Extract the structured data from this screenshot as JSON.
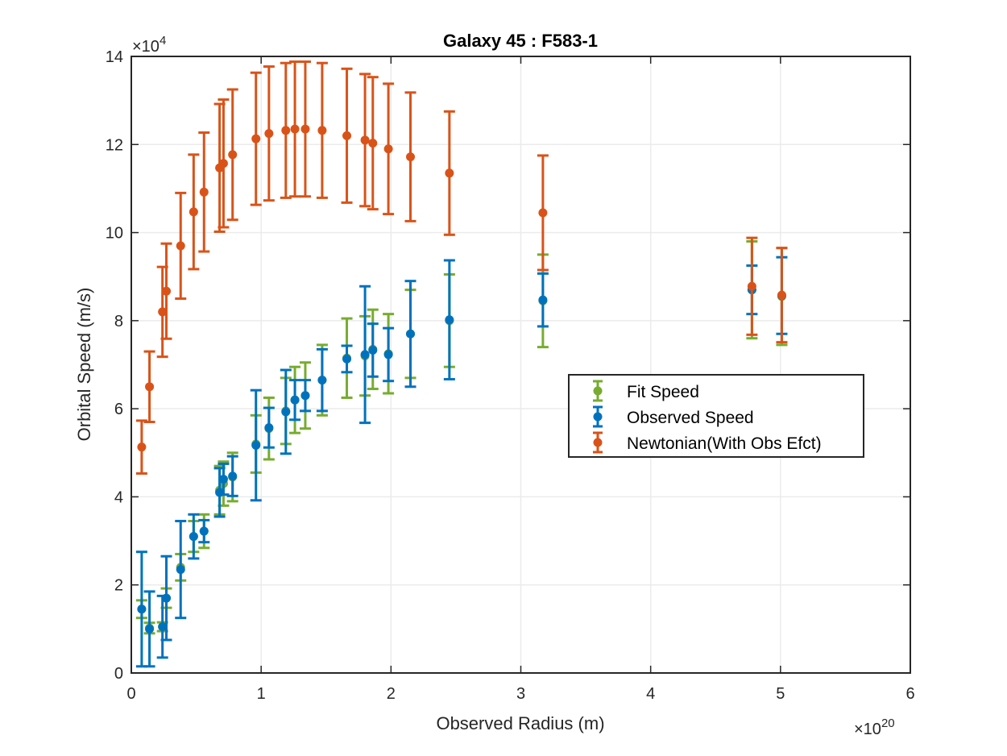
{
  "chart_data": {
    "type": "scatter",
    "title": "Galaxy 45 : F583-1",
    "xlabel": "Observed Radius (m)",
    "ylabel": "Orbital Speed (m/s)",
    "x_multiplier_text": "×10",
    "x_multiplier_exponent": "20",
    "y_multiplier_text": "×10",
    "y_multiplier_exponent": "4",
    "xlim": [
      0,
      6
    ],
    "ylim": [
      0,
      14
    ],
    "xticks": [
      "0",
      "1",
      "2",
      "3",
      "4",
      "5",
      "6"
    ],
    "yticks": [
      "0",
      "2",
      "4",
      "6",
      "8",
      "10",
      "12",
      "14"
    ],
    "grid": true,
    "legend_position": "center-right",
    "x": [
      0.08,
      0.14,
      0.24,
      0.27,
      0.38,
      0.48,
      0.56,
      0.68,
      0.71,
      0.78,
      0.96,
      1.06,
      1.19,
      1.26,
      1.34,
      1.47,
      1.66,
      1.8,
      1.86,
      1.98,
      2.15,
      2.45,
      3.17,
      4.78,
      5.01
    ],
    "series": [
      {
        "name": "Fit Speed",
        "color": "#77AC30",
        "values": [
          1.45,
          1.02,
          1.05,
          1.7,
          2.4,
          3.1,
          3.22,
          4.15,
          4.3,
          4.45,
          5.2,
          5.55,
          5.95,
          6.2,
          6.3,
          6.65,
          7.15,
          7.2,
          7.35,
          7.25,
          7.7,
          8.0,
          8.45,
          8.7,
          8.55
        ],
        "errors": [
          0.2,
          0.12,
          0.1,
          0.22,
          0.3,
          0.35,
          0.38,
          0.55,
          0.5,
          0.55,
          0.65,
          0.7,
          0.75,
          0.75,
          0.75,
          0.8,
          0.9,
          0.9,
          0.9,
          0.9,
          1.0,
          1.05,
          1.05,
          1.1,
          1.1
        ]
      },
      {
        "name": "Observed Speed",
        "color": "#0072BD",
        "values": [
          1.45,
          1.0,
          1.05,
          1.7,
          2.35,
          3.1,
          3.22,
          4.1,
          4.4,
          4.47,
          5.17,
          5.57,
          5.93,
          6.2,
          6.3,
          6.65,
          7.13,
          7.23,
          7.33,
          7.23,
          7.7,
          8.02,
          8.47,
          8.7,
          8.57
        ],
        "errors": [
          1.3,
          0.85,
          0.7,
          0.95,
          1.1,
          0.5,
          0.25,
          0.55,
          0.35,
          0.45,
          1.25,
          0.45,
          0.95,
          0.45,
          0.35,
          0.7,
          0.3,
          1.55,
          0.6,
          0.6,
          1.2,
          1.35,
          0.6,
          0.55,
          0.87
        ]
      },
      {
        "name": "Newtonian(With Obs Efct)",
        "color": "#D95319",
        "values": [
          5.13,
          6.5,
          8.2,
          8.67,
          9.7,
          10.47,
          10.92,
          11.47,
          11.57,
          11.77,
          12.13,
          12.25,
          12.32,
          12.35,
          12.35,
          12.32,
          12.2,
          12.1,
          12.03,
          11.9,
          11.72,
          11.35,
          10.45,
          8.78,
          8.58
        ],
        "errors": [
          0.6,
          0.8,
          1.02,
          1.08,
          1.2,
          1.3,
          1.35,
          1.45,
          1.45,
          1.48,
          1.5,
          1.52,
          1.53,
          1.53,
          1.53,
          1.53,
          1.52,
          1.5,
          1.5,
          1.48,
          1.46,
          1.4,
          1.3,
          1.1,
          1.07
        ]
      }
    ]
  }
}
